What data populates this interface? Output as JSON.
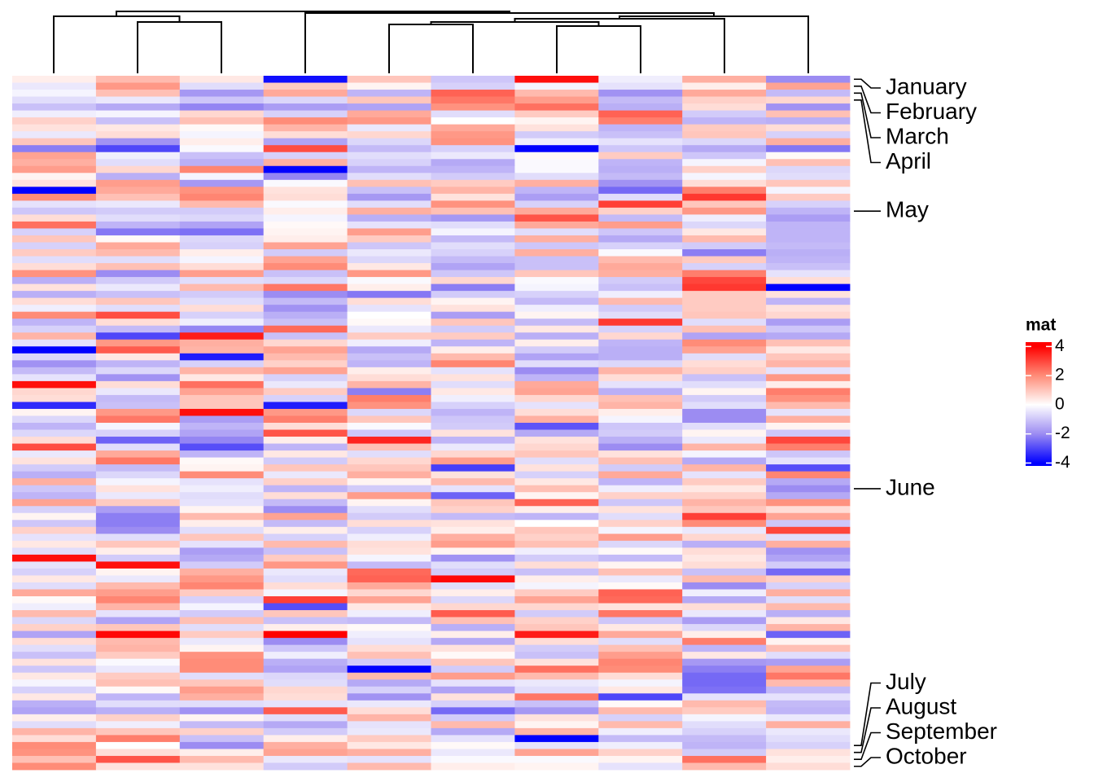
{
  "chart_data": {
    "type": "heatmap",
    "values": [
      [
        0.3,
        1.2,
        0.4,
        -3.8,
        1.0,
        -1.0,
        3.8,
        -0.3,
        1.4,
        -2.0
      ],
      [
        -0.4,
        1.8,
        -0.6,
        0.9,
        0.2,
        -0.8,
        -0.2,
        -0.5,
        0.3,
        1.6
      ],
      [
        -0.2,
        1.1,
        -1.8,
        1.5,
        -1.3,
        2.6,
        1.2,
        -1.9,
        1.5,
        -1.2
      ],
      [
        -0.6,
        -0.4,
        -1.0,
        -0.7,
        1.0,
        2.3,
        1.7,
        -1.2,
        0.8,
        0.7
      ],
      [
        -1.1,
        -1.5,
        -2.1,
        -1.7,
        -1.6,
        1.9,
        2.4,
        -1.4,
        0.6,
        -1.9
      ],
      [
        -0.3,
        -0.2,
        0.7,
        -0.8,
        1.5,
        -0.6,
        0.9,
        2.6,
        -0.9,
        1.1
      ],
      [
        0.8,
        -1.1,
        1.1,
        2.0,
        1.8,
        0.0,
        0.2,
        2.2,
        -1.3,
        -1.4
      ],
      [
        0.5,
        0.4,
        0.1,
        1.3,
        -0.4,
        1.5,
        0.5,
        -1.3,
        0.9,
        0.6
      ],
      [
        -0.4,
        0.6,
        -0.2,
        0.6,
        0.7,
        1.8,
        -0.9,
        -1.1,
        1.0,
        -0.8
      ],
      [
        1.0,
        -1.9,
        0.3,
        -1.6,
        -0.7,
        1.9,
        -0.3,
        -0.5,
        -0.7,
        1.4
      ],
      [
        -2.2,
        -3.0,
        -0.1,
        2.9,
        -1.2,
        -0.8,
        -4.0,
        -1.0,
        -1.5,
        -2.3
      ],
      [
        1.6,
        -0.3,
        -1.1,
        -0.8,
        -0.6,
        -0.4,
        0.1,
        0.9,
        -1.0,
        0.1
      ],
      [
        1.4,
        -0.6,
        -1.4,
        1.4,
        -0.8,
        -1.5,
        -0.1,
        -1.3,
        -0.2,
        1.1
      ],
      [
        1.7,
        0.7,
        2.1,
        -4.0,
        -1.3,
        -1.3,
        -0.1,
        -1.4,
        0.8,
        -0.7
      ],
      [
        0.2,
        -1.4,
        -0.2,
        -2.1,
        -0.6,
        -0.9,
        -0.6,
        -1.2,
        -0.2,
        -0.6
      ],
      [
        0.5,
        1.7,
        -1.8,
        -0.1,
        1.1,
        0.9,
        1.4,
        -1.9,
        0.6,
        1.0
      ],
      [
        -4.0,
        1.5,
        1.9,
        0.5,
        -1.1,
        1.3,
        -1.3,
        -2.5,
        2.2,
        -0.2
      ],
      [
        2.0,
        1.1,
        2.1,
        0.6,
        -1.8,
        0.5,
        -1.7,
        -0.6,
        3.2,
        0.9
      ],
      [
        -0.5,
        -0.4,
        1.2,
        -0.1,
        -0.6,
        1.9,
        -0.8,
        3.1,
        1.0,
        -0.8
      ],
      [
        -1.0,
        -0.9,
        -0.9,
        0.3,
        1.4,
        1.1,
        1.5,
        0.8,
        1.8,
        -1.3
      ],
      [
        0.6,
        -0.6,
        -0.7,
        -0.2,
        -1.4,
        -1.8,
        2.8,
        -1.2,
        -0.3,
        -1.7
      ],
      [
        2.4,
        -1.3,
        -1.6,
        0.1,
        -0.5,
        -0.6,
        1.5,
        1.7,
        -0.7,
        -1.3
      ],
      [
        -0.8,
        -2.3,
        -2.4,
        0.2,
        1.7,
        -0.2,
        -0.6,
        -1.0,
        0.4,
        -1.3
      ],
      [
        1.0,
        0.1,
        -0.7,
        0.3,
        0.9,
        -1.2,
        1.4,
        -1.5,
        1.2,
        -1.3
      ],
      [
        -0.8,
        1.5,
        -0.8,
        1.6,
        -1.0,
        -0.6,
        -1.0,
        -0.8,
        -0.9,
        -1.2
      ],
      [
        0.9,
        1.2,
        0.3,
        -0.9,
        -0.4,
        -0.8,
        1.4,
        -0.1,
        -2.2,
        -1.4
      ],
      [
        -0.6,
        -0.6,
        -0.2,
        1.6,
        -0.7,
        -1.2,
        -1.1,
        1.2,
        0.9,
        -1.3
      ],
      [
        0.6,
        1.1,
        0.6,
        2.0,
        0.4,
        -1.6,
        -1.1,
        1.5,
        -0.8,
        -1.1
      ],
      [
        1.9,
        -2.0,
        1.7,
        -1.1,
        1.8,
        -1.0,
        1.0,
        1.4,
        2.2,
        -0.5
      ],
      [
        -1.4,
        -0.9,
        -0.6,
        -0.7,
        -0.1,
        0.7,
        -0.1,
        -0.9,
        3.0,
        0.6
      ],
      [
        0.5,
        -0.4,
        1.2,
        2.3,
        0.3,
        -2.2,
        -0.2,
        -1.1,
        3.2,
        -4.0
      ],
      [
        -1.4,
        -1.1,
        -0.9,
        -2.0,
        -2.3,
        -0.9,
        -0.8,
        -0.3,
        0.9,
        0.5
      ],
      [
        0.6,
        1.0,
        -0.6,
        -1.2,
        0.6,
        0.2,
        -1.2,
        1.2,
        0.9,
        -1.3
      ],
      [
        -0.3,
        -0.6,
        0.6,
        -1.9,
        -0.5,
        0.5,
        -0.3,
        -0.9,
        0.9,
        0.5
      ],
      [
        2.0,
        2.9,
        -0.8,
        -1.4,
        0.0,
        -1.7,
        0.2,
        -0.6,
        1.0,
        0.7
      ],
      [
        -1.3,
        0.6,
        -0.3,
        -1.1,
        0.1,
        1.0,
        -1.2,
        3.2,
        -0.6,
        -1.7
      ],
      [
        -0.8,
        -1.2,
        -2.1,
        2.5,
        -0.4,
        -0.9,
        0.4,
        -0.8,
        1.1,
        -1.0
      ],
      [
        1.3,
        -3.0,
        3.6,
        -1.1,
        0.9,
        0.9,
        -1.4,
        0.7,
        -1.6,
        -1.5
      ],
      [
        -0.5,
        1.8,
        1.4,
        0.7,
        -0.3,
        -1.3,
        0.3,
        -1.3,
        2.0,
        1.1
      ],
      [
        -4.0,
        2.7,
        1.3,
        1.6,
        -1.5,
        0.3,
        -0.9,
        -1.4,
        1.6,
        0.4
      ],
      [
        -0.7,
        0.4,
        -3.6,
        1.2,
        -1.1,
        1.2,
        -1.6,
        -1.4,
        -0.6,
        1.0
      ],
      [
        -1.9,
        -1.3,
        -0.8,
        0.8,
        -1.3,
        2.1,
        -0.6,
        -0.7,
        0.6,
        1.3
      ],
      [
        -1.2,
        -0.7,
        1.3,
        1.6,
        0.3,
        -0.5,
        -2.0,
        1.3,
        0.8,
        -0.5
      ],
      [
        -0.5,
        -1.9,
        0.4,
        -0.8,
        0.6,
        0.5,
        -1.3,
        0.6,
        -1.1,
        1.8
      ],
      [
        3.8,
        0.6,
        2.4,
        -0.4,
        1.3,
        -0.6,
        1.5,
        -0.5,
        -0.6,
        0.3
      ],
      [
        0.7,
        -0.4,
        1.6,
        0.9,
        -2.2,
        0.4,
        1.6,
        -1.4,
        0.2,
        2.2
      ],
      [
        0.6,
        -1.2,
        1.0,
        -0.8,
        2.2,
        -0.3,
        0.7,
        1.1,
        -0.9,
        1.9
      ],
      [
        -3.4,
        -1.1,
        1.0,
        -3.6,
        1.9,
        -0.8,
        -0.5,
        1.3,
        -0.6,
        1.2
      ],
      [
        0.2,
        1.8,
        3.8,
        1.8,
        -0.7,
        -1.3,
        0.6,
        0.3,
        -2.0,
        -0.5
      ],
      [
        -0.7,
        2.3,
        -1.7,
        2.2,
        1.0,
        -1.0,
        1.4,
        -0.2,
        -2.0,
        1.4
      ],
      [
        -1.3,
        -0.2,
        -1.3,
        0.6,
        -0.1,
        -0.9,
        -2.8,
        -1.0,
        -0.6,
        0.2
      ],
      [
        -0.7,
        -0.8,
        -1.6,
        2.8,
        -1.0,
        0.5,
        -1.5,
        -0.9,
        0.2,
        -1.0
      ],
      [
        0.6,
        -2.6,
        -2.1,
        0.3,
        3.5,
        -1.3,
        0.5,
        -1.4,
        -0.4,
        3.0
      ],
      [
        2.9,
        -0.6,
        -2.9,
        -1.3,
        1.1,
        -0.4,
        0.7,
        -2.0,
        1.3,
        2.2
      ],
      [
        -0.4,
        1.5,
        -1.3,
        0.4,
        -0.6,
        0.7,
        1.0,
        0.5,
        -0.2,
        -1.0
      ],
      [
        0.5,
        2.3,
        0.1,
        -0.9,
        0.7,
        1.7,
        -0.6,
        1.1,
        -1.5,
        -0.5
      ],
      [
        -0.9,
        -1.2,
        0.2,
        1.0,
        1.0,
        -3.1,
        0.5,
        -0.9,
        1.3,
        -2.9
      ],
      [
        -1.4,
        -0.7,
        2.0,
        -0.4,
        1.4,
        0.5,
        -0.8,
        1.5,
        -0.5,
        2.1
      ],
      [
        1.4,
        -0.2,
        -0.5,
        0.8,
        0.2,
        1.2,
        0.4,
        -1.3,
        0.9,
        -1.5
      ],
      [
        -1.0,
        0.5,
        -0.3,
        -1.3,
        -0.9,
        -0.5,
        1.1,
        -0.3,
        0.4,
        -2.0
      ],
      [
        -1.3,
        -0.4,
        -0.6,
        0.6,
        1.7,
        -2.6,
        0.2,
        0.8,
        0.8,
        -1.5
      ],
      [
        1.6,
        0.9,
        -0.5,
        -1.2,
        0.2,
        1.0,
        2.6,
        -1.0,
        1.3,
        1.9
      ],
      [
        -0.8,
        -1.7,
        0.2,
        -2.0,
        -0.6,
        0.8,
        0.3,
        0.5,
        1.0,
        0.6
      ],
      [
        0.2,
        -2.2,
        1.2,
        1.6,
        -0.9,
        -1.2,
        -1.3,
        -0.6,
        3.1,
        1.6
      ],
      [
        -1.0,
        -2.2,
        0.3,
        -1.2,
        0.6,
        0.5,
        0.0,
        0.8,
        2.0,
        -1.0
      ],
      [
        0.8,
        -2.0,
        -0.6,
        0.3,
        -0.8,
        0.3,
        1.0,
        -0.2,
        -0.4,
        3.0
      ],
      [
        -0.5,
        -0.6,
        1.0,
        -0.8,
        -0.3,
        1.4,
        0.8,
        1.7,
        0.7,
        -0.6
      ],
      [
        0.4,
        1.0,
        -0.5,
        1.2,
        0.6,
        1.7,
        1.1,
        -0.7,
        -1.4,
        1.4
      ],
      [
        -0.6,
        0.3,
        -1.7,
        -1.1,
        0.5,
        0.2,
        -0.3,
        0.1,
        0.6,
        -1.9
      ],
      [
        3.8,
        -0.9,
        -1.5,
        0.9,
        -0.2,
        -1.9,
        -0.9,
        -1.2,
        0.4,
        -1.6
      ],
      [
        -0.5,
        3.8,
        -0.9,
        1.8,
        -1.2,
        -0.6,
        0.6,
        0.2,
        0.6,
        -0.9
      ],
      [
        -0.8,
        0.2,
        1.4,
        -0.4,
        2.5,
        -0.9,
        -1.1,
        1.1,
        -1.1,
        -2.5
      ],
      [
        0.4,
        -0.4,
        1.8,
        -0.6,
        2.6,
        3.9,
        0.3,
        -0.4,
        1.2,
        0.8
      ],
      [
        -0.6,
        1.2,
        2.1,
        0.6,
        1.5,
        -0.6,
        -0.2,
        0.1,
        -2.0,
        -0.8
      ],
      [
        1.5,
        1.7,
        0.9,
        -0.2,
        0.7,
        0.3,
        0.9,
        2.6,
        -0.3,
        1.4
      ],
      [
        0.1,
        2.1,
        -0.8,
        3.1,
        1.6,
        -0.7,
        1.6,
        2.5,
        -1.5,
        -0.6
      ],
      [
        -0.3,
        1.3,
        -0.2,
        -2.9,
        0.4,
        0.7,
        0.7,
        0.5,
        0.6,
        1.2
      ],
      [
        1.2,
        -0.5,
        -0.9,
        1.0,
        -0.3,
        2.7,
        -0.9,
        2.3,
        -0.4,
        -1.4
      ],
      [
        -0.7,
        -1.6,
        1.1,
        -1.1,
        -1.2,
        1.1,
        0.8,
        -1.0,
        -1.7,
        0.4
      ],
      [
        0.8,
        1.0,
        -0.6,
        0.3,
        0.1,
        -1.4,
        1.0,
        0.4,
        -0.7,
        1.3
      ],
      [
        -1.6,
        3.9,
        0.9,
        4.0,
        -0.3,
        0.3,
        3.6,
        1.5,
        0.3,
        -2.6
      ],
      [
        0.6,
        1.2,
        -0.4,
        -2.0,
        -0.5,
        -1.5,
        0.6,
        -0.6,
        2.2,
        0.2
      ],
      [
        -0.6,
        1.3,
        0.2,
        -1.0,
        0.6,
        0.5,
        -0.9,
        1.1,
        -1.3,
        1.1
      ],
      [
        -1.1,
        0.9,
        1.9,
        -0.3,
        1.1,
        0.1,
        -1.1,
        1.7,
        0.4,
        -0.6
      ],
      [
        0.5,
        -0.1,
        2.0,
        -1.4,
        -0.9,
        1.0,
        0.5,
        2.1,
        -1.8,
        -1.7
      ],
      [
        -1.0,
        -0.4,
        2.0,
        -1.6,
        -4.0,
        -0.9,
        2.4,
        2.0,
        -2.2,
        1.6
      ],
      [
        0.4,
        0.9,
        -0.6,
        -0.7,
        1.2,
        1.7,
        1.2,
        0.6,
        -2.5,
        2.3
      ],
      [
        -0.2,
        1.1,
        1.0,
        -0.6,
        -1.5,
        -0.5,
        -0.4,
        -0.2,
        -2.5,
        1.2
      ],
      [
        -0.8,
        0.1,
        1.7,
        0.7,
        -0.8,
        -1.6,
        -0.6,
        0.4,
        -2.4,
        -1.2
      ],
      [
        0.4,
        -1.3,
        1.4,
        0.6,
        -1.9,
        0.5,
        2.3,
        -3.0,
        -0.5,
        -0.5
      ],
      [
        -1.4,
        -0.6,
        -0.6,
        -0.5,
        -0.4,
        -0.8,
        -1.1,
        0.1,
        1.2,
        -1.2
      ],
      [
        -1.6,
        -1.4,
        -1.9,
        2.7,
        0.6,
        -2.5,
        -1.8,
        1.2,
        0.9,
        -1.3
      ],
      [
        0.3,
        0.8,
        0.2,
        -0.6,
        1.3,
        -0.9,
        0.5,
        -0.8,
        -0.2,
        -0.4
      ],
      [
        -0.6,
        -0.3,
        -1.2,
        -1.5,
        -0.5,
        1.2,
        0.2,
        1.2,
        -0.6,
        1.4
      ],
      [
        1.3,
        1.0,
        0.8,
        -0.9,
        -0.4,
        -1.5,
        1.3,
        -0.3,
        -0.8,
        -0.4
      ],
      [
        0.6,
        2.2,
        -1.1,
        0.3,
        0.9,
        -0.5,
        -4.0,
        -1.2,
        -1.2,
        -0.6
      ],
      [
        2.0,
        0.0,
        -2.0,
        1.4,
        0.4,
        0.1,
        -0.5,
        -0.3,
        -1.3,
        -0.8
      ],
      [
        1.9,
        0.6,
        0.3,
        1.6,
        1.4,
        -0.4,
        1.6,
        0.8,
        -0.9,
        0.5
      ],
      [
        1.1,
        2.8,
        1.2,
        -0.4,
        -0.5,
        -0.1,
        -0.1,
        0.2,
        2.4,
        0.3
      ],
      [
        2.0,
        0.5,
        0.5,
        -0.9,
        1.2,
        0.3,
        0.2,
        -0.5,
        1.2,
        0.6
      ]
    ],
    "colorscale": [
      {
        "value": -4,
        "color": "#0000ff"
      },
      {
        "value": -2,
        "color": "#9c8cf2"
      },
      {
        "value": 0,
        "color": "#ffffff"
      },
      {
        "value": 2,
        "color": "#ff8c78"
      },
      {
        "value": 4,
        "color": "#ff0000"
      }
    ],
    "row_marks": [
      {
        "label": "January",
        "row": 0
      },
      {
        "label": "February",
        "row": 1
      },
      {
        "label": "March",
        "row": 2
      },
      {
        "label": "April",
        "row": 3
      },
      {
        "label": "May",
        "row": 19
      },
      {
        "label": "June",
        "row": 59
      },
      {
        "label": "July",
        "row": 96
      },
      {
        "label": "August",
        "row": 97
      },
      {
        "label": "September",
        "row": 98
      },
      {
        "label": "October",
        "row": 99
      }
    ],
    "legend": {
      "title": "mat",
      "lim": [
        -4.2,
        4.3
      ],
      "ticks": [
        4,
        2,
        0,
        -2,
        -4
      ]
    }
  }
}
